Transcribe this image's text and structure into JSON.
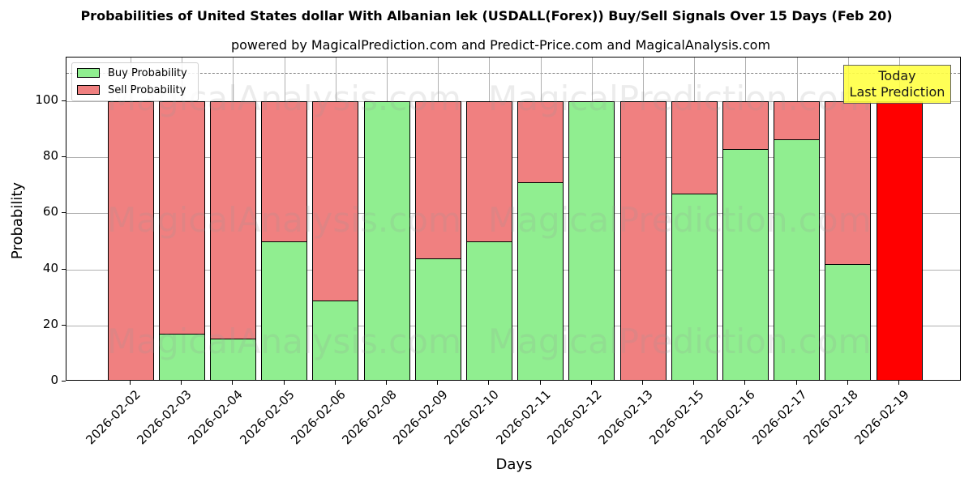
{
  "title": "Probabilities of United States dollar With Albanian lek (USDALL(Forex)) Buy/Sell Signals Over 15 Days (Feb 20)",
  "subtitle": "powered by MagicalPrediction.com and Predict-Price.com and MagicalAnalysis.com",
  "legend": {
    "buy_label": "Buy Probability",
    "sell_label": "Sell Probability"
  },
  "annotation": {
    "line1": "Today",
    "line2": "Last Prediction"
  },
  "watermarks": [
    "MagicalAnalysis.com",
    "MagicalPrediction.com"
  ],
  "colors": {
    "buy": "#90ee90",
    "sell": "#f08080",
    "today": "#ff0000",
    "annotation_bg": "#ffff44"
  },
  "chart_data": {
    "type": "bar",
    "stacked": true,
    "title": "Probabilities of United States dollar With Albanian lek (USDALL(Forex)) Buy/Sell Signals Over 15 Days (Feb 20)",
    "subtitle": "powered by MagicalPrediction.com and Predict-Price.com and MagicalAnalysis.com",
    "xlabel": "Days",
    "ylabel": "Probability",
    "ylim": [
      0,
      115
    ],
    "yticks": [
      0,
      20,
      40,
      60,
      80,
      100
    ],
    "grid": true,
    "legend_position": "upper left",
    "reference_line": {
      "y": 110,
      "style": "dashed",
      "color": "#808080"
    },
    "categories": [
      "2026-02-02",
      "2026-02-03",
      "2026-02-04",
      "2026-02-05",
      "2026-02-06",
      "2026-02-08",
      "2026-02-09",
      "2026-02-10",
      "2026-02-11",
      "2026-02-12",
      "2026-02-13",
      "2026-02-15",
      "2026-02-16",
      "2026-02-17",
      "2026-02-18",
      "2026-02-19"
    ],
    "series": [
      {
        "name": "Buy Probability",
        "values": [
          0,
          17,
          15.3,
          50,
          29,
          100,
          44,
          50,
          71,
          100,
          0,
          67,
          83,
          86.4,
          42,
          0
        ]
      },
      {
        "name": "Sell Probability",
        "values": [
          100,
          83,
          84.7,
          50,
          71,
          0,
          56,
          50,
          29,
          0,
          100,
          33,
          17,
          13.6,
          58,
          100
        ]
      }
    ],
    "highlight": {
      "category": "2026-02-19",
      "color": "#ff0000",
      "label": "Today\nLast Prediction"
    }
  }
}
